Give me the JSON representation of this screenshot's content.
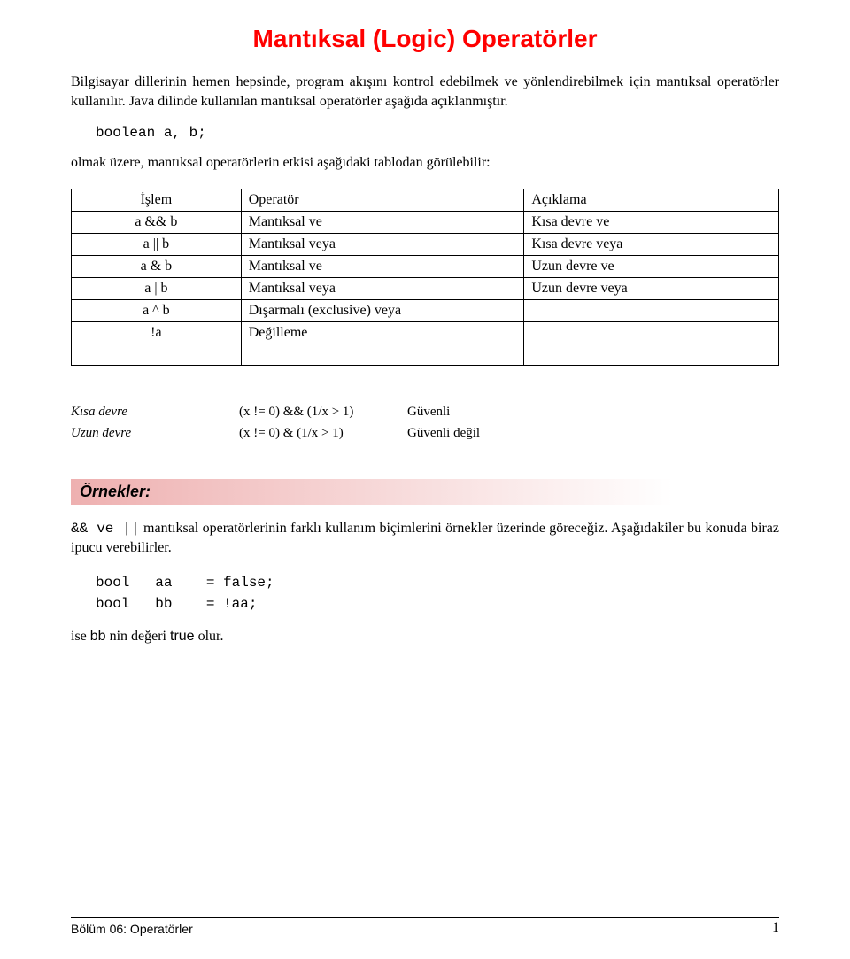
{
  "title": "Mantıksal (Logic) Operatörler",
  "intro": "Bilgisayar dillerinin hemen hepsinde,   program akışını kontrol edebilmek ve yönlendirebilmek için mantıksal operatörler kullanılır. Java dilinde kullanılan mantıksal operatörler aşağıda açıklanmıştır.",
  "decl": "boolean a, b;",
  "lead": "olmak üzere, mantıksal operatörlerin etkisi aşağıdaki tablodan görülebilir:",
  "table": {
    "header": {
      "c0": "İşlem",
      "c1": "Operatör",
      "c2": "Açıklama"
    },
    "rows": [
      {
        "c0": "a && b",
        "c1": "Mantıksal ve",
        "c2": "Kısa devre ve"
      },
      {
        "c0": "a || b",
        "c1": "Mantıksal veya",
        "c2": "Kısa devre veya"
      },
      {
        "c0": "a & b",
        "c1": "Mantıksal ve",
        "c2": "Uzun devre ve"
      },
      {
        "c0": "a | b",
        "c1": "Mantıksal veya",
        "c2": "Uzun devre veya"
      },
      {
        "c0": "a ^ b",
        "c1": "Dışarmalı (exclusive) veya",
        "c2": ""
      },
      {
        "c0": "!a",
        "c1": "Değilleme",
        "c2": ""
      },
      {
        "c0": "",
        "c1": "",
        "c2": ""
      }
    ]
  },
  "ex": {
    "r0": {
      "label": "Kısa devre",
      "expr": "(x != 0) && (1/x > 1)",
      "note": "Güvenli"
    },
    "r1": {
      "label": "Uzun devre",
      "expr": "(x != 0) & (1/x > 1)",
      "note": "Güvenli değil"
    }
  },
  "examples_heading": "Örnekler:",
  "examples_para_a": "&&  ve  ||",
  "examples_para_b": "    mantıksal operatörlerinin farklı kullanım biçimlerini örnekler üzerinde göreceğiz. Aşağıdakiler bu konuda biraz ipucu verebilirler.",
  "code_block": "bool   aa    = false;\nbool   bb    = !aa;",
  "closing_a": "ise ",
  "closing_b": "bb",
  "closing_c": " nin değeri ",
  "closing_d": "true",
  "closing_e": " olur.",
  "footer": {
    "title": "Bölüm 06: Operatörler",
    "page": "1"
  }
}
